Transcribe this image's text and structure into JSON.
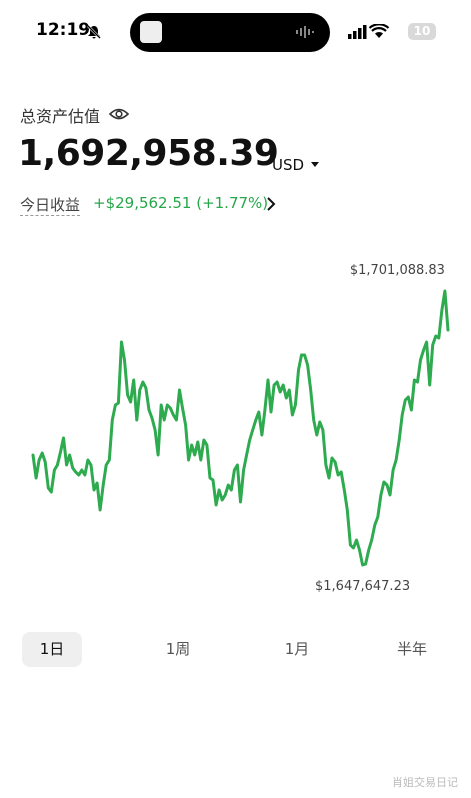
{
  "status_bar": {
    "time": "12:19",
    "battery": "10"
  },
  "header": {
    "title": "总资产估值",
    "amount": "1,692,958.39",
    "currency": "USD",
    "today_label": "今日收益",
    "today_change": "+$29,562.51 (+1.77%)"
  },
  "chart_data": {
    "type": "line",
    "color": "#2eaa4f",
    "values": [
      1669102,
      1664617,
      1668127,
      1669493,
      1667737,
      1662666,
      1661886,
      1666177,
      1667152,
      1669688,
      1672418,
      1667152,
      1669102,
      1666567,
      1665787,
      1665202,
      1666177,
      1665202,
      1668127,
      1667152,
      1662276,
      1663641,
      1658375,
      1663251,
      1667152,
      1668127,
      1675929,
      1678854,
      1679245,
      1691142,
      1687631,
      1680805,
      1679440,
      1683730,
      1675929,
      1681780,
      1683340,
      1682170,
      1677879,
      1676319,
      1673978,
      1669102,
      1678854,
      1675929,
      1678854,
      1678269,
      1676904,
      1675929,
      1681780,
      1678269,
      1674954,
      1668127,
      1671053,
      1669102,
      1671638,
      1668127,
      1672028,
      1671053,
      1664617,
      1664226,
      1659350,
      1662276,
      1660326,
      1661301,
      1663251,
      1662276,
      1666177,
      1667152,
      1659936,
      1666177,
      1669102,
      1672028,
      1673978,
      1675929,
      1677489,
      1673003,
      1677879,
      1683730,
      1677489,
      1682755,
      1683340,
      1681390,
      1682755,
      1680220,
      1681780,
      1676904,
      1678854,
      1685681,
      1688606,
      1688606,
      1686656,
      1681780,
      1675929,
      1673003,
      1675539,
      1673978,
      1667152,
      1664617,
      1668517,
      1667737,
      1665202,
      1665787,
      1662276,
      1658375,
      1651549,
      1650964,
      1652524,
      1650574,
      1647647.23,
      1647843,
      1650574,
      1652524,
      1655450,
      1657010,
      1661301,
      1663836,
      1663251,
      1661301,
      1666177,
      1668127,
      1672028,
      1676904,
      1679830,
      1680415,
      1677879,
      1683730,
      1683340,
      1687631,
      1689582,
      1691142,
      1682755,
      1690557,
      1692312,
      1691922,
      1697383,
      1701088.83,
      1693482
    ],
    "high": {
      "value": 1701088.83,
      "label": "$1,701,088.83"
    },
    "low": {
      "value": 1647647.23,
      "label": "$1,647,647.23"
    }
  },
  "tabs": {
    "items": [
      "1日",
      "1周",
      "1月",
      "半年"
    ],
    "selected": 0
  },
  "watermark": "肖姐交易日记"
}
